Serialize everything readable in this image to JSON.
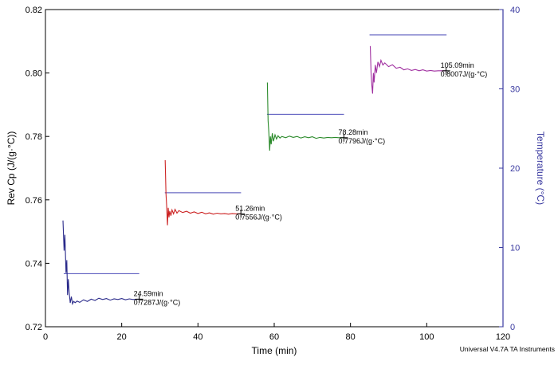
{
  "chart_data": {
    "type": "line",
    "xlabel": "Time (min)",
    "ylabel": "Rev Cp (J/(g·°C))",
    "y2label": "Temperature (°C)",
    "xlim": [
      0,
      120
    ],
    "ylim": [
      0.72,
      0.82
    ],
    "y2lim": [
      0,
      40
    ],
    "xticks": [
      "0",
      "20",
      "40",
      "60",
      "80",
      "100",
      "120"
    ],
    "yticks": [
      "0.72",
      "0.74",
      "0.76",
      "0.78",
      "0.80",
      "0.82"
    ],
    "y2ticks": [
      "0",
      "10",
      "20",
      "30",
      "40"
    ],
    "grid": false,
    "colors": {
      "y2_axis": "#3a3aa0",
      "temperature": "#4a4ab8",
      "segment1": "#2a2a8a",
      "segment2": "#cc2222",
      "segment3": "#2a8a2a",
      "segment4": "#a030a0"
    },
    "cp_series": [
      {
        "color_key": "segment1",
        "x": [
          4.6,
          4.9,
          5.1,
          5.4,
          5.6,
          5.8,
          6.0,
          6.2,
          6.5,
          6.8,
          7.1,
          7.4,
          7.8,
          8.3,
          9,
          10,
          11,
          12,
          13,
          14,
          15,
          16,
          17,
          18,
          19,
          20,
          21,
          22,
          23,
          24.59
        ],
        "y": [
          0.7535,
          0.744,
          0.749,
          0.737,
          0.741,
          0.73,
          0.735,
          0.731,
          0.7275,
          0.7295,
          0.7272,
          0.728,
          0.7276,
          0.7281,
          0.7277,
          0.7285,
          0.728,
          0.7287,
          0.7283,
          0.729,
          0.7286,
          0.7289,
          0.7284,
          0.7288,
          0.7286,
          0.7289,
          0.7285,
          0.7288,
          0.7286,
          0.7287
        ]
      },
      {
        "color_key": "segment2",
        "x": [
          31.4,
          31.6,
          31.8,
          32.0,
          32.2,
          32.4,
          32.6,
          32.9,
          33.2,
          33.6,
          34,
          34.5,
          35,
          36,
          37,
          38,
          39,
          40,
          41,
          42,
          43,
          44,
          45,
          46,
          47,
          48,
          49,
          50,
          51.26
        ],
        "y": [
          0.7725,
          0.762,
          0.758,
          0.752,
          0.7575,
          0.7545,
          0.7565,
          0.755,
          0.7568,
          0.7556,
          0.757,
          0.7558,
          0.7566,
          0.756,
          0.7564,
          0.7558,
          0.7562,
          0.7557,
          0.7561,
          0.7556,
          0.7559,
          0.7555,
          0.7558,
          0.7556,
          0.7557,
          0.7555,
          0.7557,
          0.7556,
          0.7556
        ]
      },
      {
        "color_key": "segment3",
        "x": [
          58.2,
          58.4,
          58.6,
          58.8,
          59.0,
          59.2,
          59.5,
          59.8,
          60.2,
          60.6,
          61.0,
          61.5,
          62,
          63,
          64,
          65,
          66,
          67,
          68,
          69,
          70,
          71,
          72,
          73,
          74,
          75,
          76,
          77,
          78.28
        ],
        "y": [
          0.797,
          0.785,
          0.781,
          0.7755,
          0.78,
          0.7775,
          0.781,
          0.7785,
          0.7805,
          0.7792,
          0.7802,
          0.7795,
          0.78,
          0.7796,
          0.7801,
          0.7797,
          0.78,
          0.7795,
          0.7799,
          0.7796,
          0.7799,
          0.7794,
          0.7797,
          0.7795,
          0.7797,
          0.7796,
          0.7797,
          0.7796,
          0.7796
        ]
      },
      {
        "color_key": "segment4",
        "x": [
          85.2,
          85.4,
          85.6,
          85.8,
          86.0,
          86.2,
          86.5,
          86.8,
          87.2,
          87.6,
          88.0,
          88.5,
          89,
          90,
          91,
          92,
          93,
          94,
          95,
          96,
          97,
          98,
          99,
          100,
          101,
          102,
          103,
          104,
          105.09
        ],
        "y": [
          0.8085,
          0.8,
          0.796,
          0.7935,
          0.8,
          0.797,
          0.8025,
          0.8,
          0.8035,
          0.802,
          0.804,
          0.8025,
          0.8032,
          0.802,
          0.8026,
          0.8015,
          0.8018,
          0.801,
          0.8013,
          0.8008,
          0.8011,
          0.8007,
          0.801,
          0.8006,
          0.8008,
          0.8006,
          0.8007,
          0.8007,
          0.8007
        ]
      }
    ],
    "temperature_steps": [
      {
        "x_start": 4.8,
        "x_end": 24.6,
        "y": 6.7
      },
      {
        "x_start": 31.3,
        "x_end": 51.3,
        "y": 16.9
      },
      {
        "x_start": 58.1,
        "x_end": 78.3,
        "y": 26.8
      },
      {
        "x_start": 85.0,
        "x_end": 105.2,
        "y": 36.8
      }
    ],
    "annotations": [
      {
        "x": 24.59,
        "y": 0.7287,
        "time": "24.59min",
        "value": "0.7287J/(g·°C)"
      },
      {
        "x": 51.26,
        "y": 0.7556,
        "time": "51.26min",
        "value": "0.7556J/(g·°C)"
      },
      {
        "x": 78.28,
        "y": 0.7796,
        "time": "78.28min",
        "value": "0.7796J/(g·°C)"
      },
      {
        "x": 105.09,
        "y": 0.8007,
        "time": "105.09min",
        "value": "0.8007J/(g·°C)"
      }
    ]
  },
  "footer": "Universal V4.7A TA Instruments"
}
